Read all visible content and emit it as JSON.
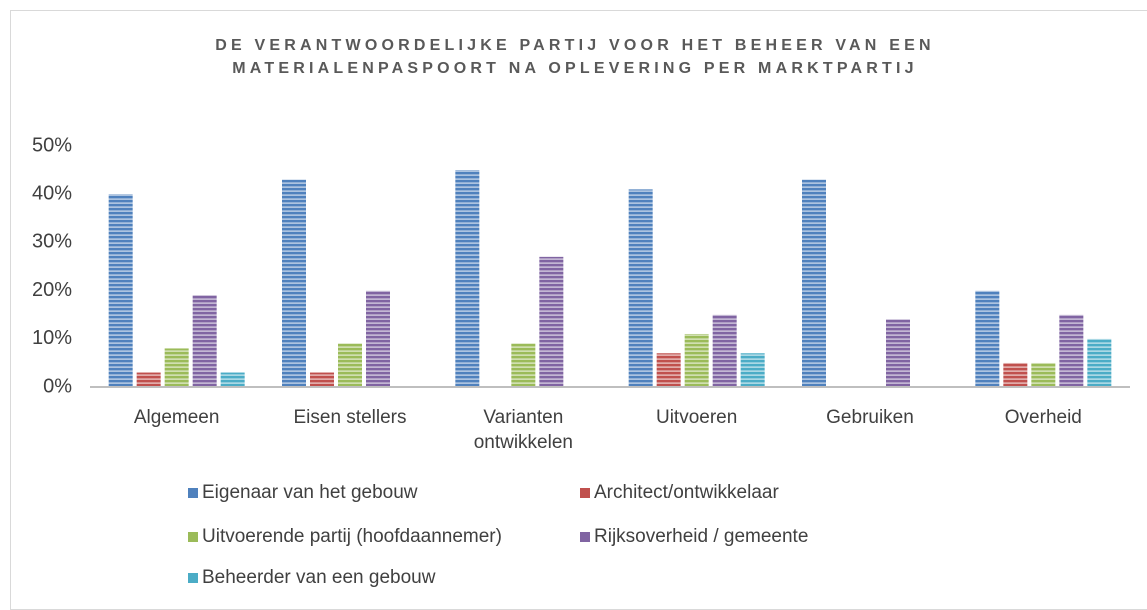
{
  "chart_data": {
    "type": "bar",
    "title": "DE VERANTWOORDELIJKE PARTIJ VOOR HET BEHEER VAN EEN MATERIALENPASPOORT NA OPLEVERING PER MARKTPARTIJ",
    "categories": [
      "Algemeen",
      "Eisen stellers",
      "Varianten ontwikkelen",
      "Uitvoeren",
      "Gebruiken",
      "Overheid"
    ],
    "series": [
      {
        "name": "Eigenaar van het gebouw",
        "color": "#4f81bd",
        "values": [
          40,
          43,
          45,
          41,
          43,
          20
        ]
      },
      {
        "name": "Architect/ontwikkelaar",
        "color": "#c0504d",
        "values": [
          3,
          3,
          0,
          7,
          0,
          5
        ]
      },
      {
        "name": "Uitvoerende partij (hoofdaannemer)",
        "color": "#9bbb59",
        "values": [
          8,
          9,
          9,
          11,
          0,
          5
        ]
      },
      {
        "name": "Rijksoverheid / gemeente",
        "color": "#8064a2",
        "values": [
          19,
          20,
          27,
          15,
          14,
          15
        ]
      },
      {
        "name": "Beheerder van een gebouw",
        "color": "#4bacc6",
        "values": [
          3,
          0,
          0,
          7,
          0,
          10
        ]
      }
    ],
    "ylim": [
      0,
      50
    ],
    "yticks": [
      {
        "value": 0,
        "label": "0%"
      },
      {
        "value": 10,
        "label": "10%"
      },
      {
        "value": 20,
        "label": "20%"
      },
      {
        "value": 30,
        "label": "30%"
      },
      {
        "value": 40,
        "label": "40%"
      },
      {
        "value": 50,
        "label": "50%"
      }
    ],
    "grid": false
  }
}
